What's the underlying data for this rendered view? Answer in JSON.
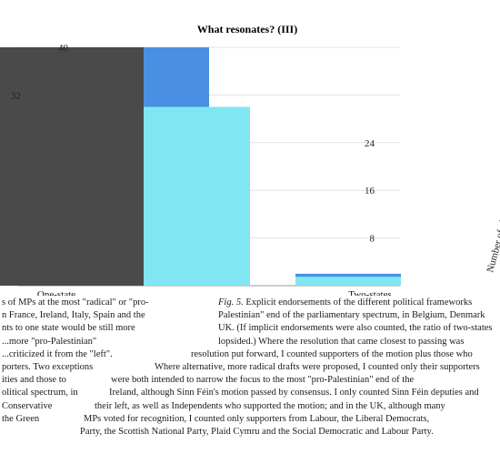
{
  "chart_data": {
    "type": "bar",
    "title": "What resonates? (III)",
    "ylabel": "Number of plausible options in a MP's rationale",
    "ytick_labels": [
      "8",
      "16",
      "24",
      "32",
      "40"
    ],
    "ylim": [
      0,
      40
    ],
    "categories": [
      "One-state",
      "Two-states"
    ],
    "series": [
      {
        "color": "#4a4a4a",
        "values": [
          40,
          2
        ]
      },
      {
        "color": "#4a90e2",
        "values": [
          40,
          2
        ]
      },
      {
        "color": "#80e6f2",
        "values": [
          30,
          1.5
        ]
      }
    ]
  },
  "caption": {
    "fig_label": "Fig. 5",
    "left_lines": [
      "s of MPs at the most \"radical\" or \"pro-",
      "n France, Ireland, Italy, Spain and the",
      "nts to one state would be still more",
      "...more \"pro-Palestinian\"",
      "...criticized it from the \"left\".",
      "porters. Two exceptions",
      "ities and those to",
      "olitical spectrum, in",
      "Conservative",
      "the Green"
    ],
    "right_lines": [
      "Explicit endorsements of the different political frameworks",
      "Palestinian\" end of the parliamentary spectrum, in Belgium, Denmark",
      "UK. (If implicit endorsements were also counted, the ratio of two-states",
      "lopsided.) Where the resolution that came closest to passing was",
      "resolution put forward, I counted supporters of the motion plus those who",
      "Where alternative, more radical drafts were proposed, I counted only their supporters",
      "were both intended to narrow the focus to the most \"pro-Palestinian\" end of the",
      "Ireland, although Sinn Féin's motion passed by consensus. I only counted Sinn Féin deputies and",
      "their left, as well as Independents who supported the motion; and in the UK, although many",
      "MPs voted for recognition, I counted only supporters from Labour, the Liberal Democrats,",
      "Party, the Scottish National Party, Plaid Cymru and the Social Democratic and Labour Party."
    ]
  }
}
